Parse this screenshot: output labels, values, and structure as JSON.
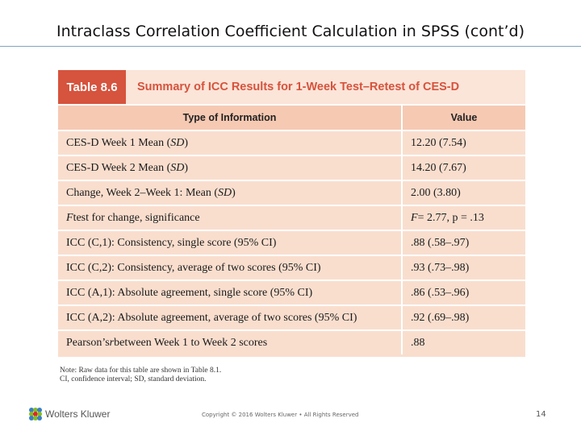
{
  "slide": {
    "title": "Intraclass Correlation Coefficient Calculation in SPSS (cont’d)"
  },
  "table": {
    "label": "Table 8.6",
    "caption": "Summary of ICC Results for 1-Week Test–Retest of CES-D",
    "columns": [
      "Type of Information",
      "Value"
    ],
    "rows": [
      {
        "pre": "CES-D Week 1 Mean (",
        "em": "SD",
        "post": ")",
        "value_pre": "12.20 (7.54)",
        "value_em": "",
        "value_post": ""
      },
      {
        "pre": "CES-D Week 2 Mean (",
        "em": "SD",
        "post": ")",
        "value_pre": "14.20 (7.67)",
        "value_em": "",
        "value_post": ""
      },
      {
        "pre": "Change, Week 2–Week 1: Mean (",
        "em": "SD",
        "post": ")",
        "value_pre": "2.00 (3.80)",
        "value_em": "",
        "value_post": ""
      },
      {
        "pre": "",
        "em": "F",
        "post": " test for change, significance",
        "value_pre": "",
        "value_em": "F",
        "value_post": " = 2.77, p = .13"
      },
      {
        "pre": "ICC (C,1): Consistency, single score (95% CI)",
        "em": "",
        "post": "",
        "value_pre": ".88 (.58–.97)",
        "value_em": "",
        "value_post": ""
      },
      {
        "pre": "ICC (C,2): Consistency, average of two scores (95% CI)",
        "em": "",
        "post": "",
        "value_pre": ".93 (.73–.98)",
        "value_em": "",
        "value_post": ""
      },
      {
        "pre": "ICC (A,1): Absolute agreement, single score (95% CI)",
        "em": "",
        "post": "",
        "value_pre": ".86 (.53–.96)",
        "value_em": "",
        "value_post": ""
      },
      {
        "pre": "ICC (A,2): Absolute agreement, average of two scores (95% CI)",
        "em": "",
        "post": "",
        "value_pre": ".92 (.69–.98)",
        "value_em": "",
        "value_post": ""
      },
      {
        "pre": "Pearson’s ",
        "em": "r",
        "post": " between Week 1 to Week 2 scores",
        "value_pre": ".88",
        "value_em": "",
        "value_post": ""
      }
    ],
    "note_line1": "Note: Raw data for this table are shown in Table 8.1.",
    "note_line2": "CI, confidence interval; SD, standard deviation."
  },
  "footer": {
    "brand": "Wolters Kluwer",
    "copyright": "Copyright © 2016 Wolters Kluwer • All Rights Reserved",
    "page_number": "14"
  },
  "colors": {
    "accent_red": "#d6533d",
    "row_fill": "#f9dece",
    "header_fill": "#f6c9b3",
    "rule_blue": "#7fa4c0"
  }
}
